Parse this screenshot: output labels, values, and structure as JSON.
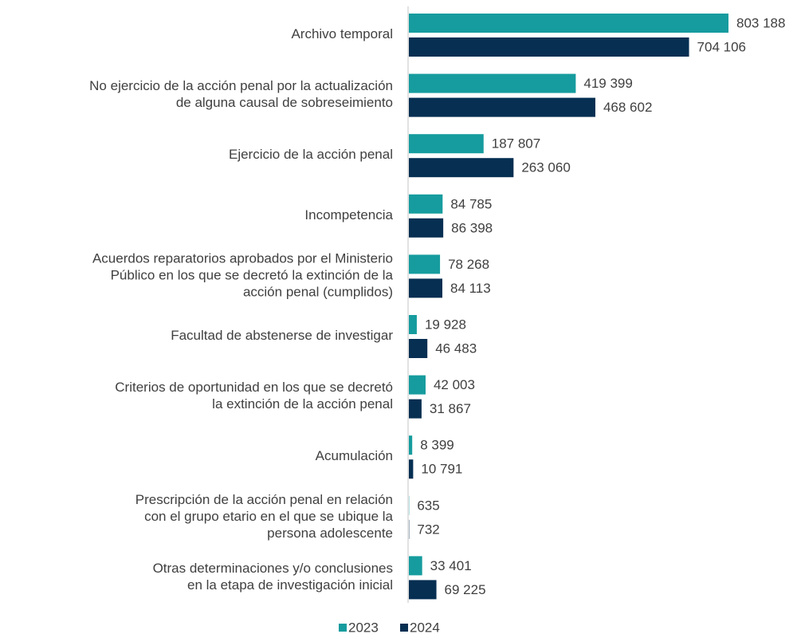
{
  "chart_data": {
    "type": "bar",
    "orientation": "horizontal",
    "categories": [
      "Archivo temporal",
      "No ejercicio de la acción penal por la actualización\nde alguna causal de sobreseimiento",
      "Ejercicio de la acción penal",
      "Incompetencia",
      "Acuerdos reparatorios aprobados por el Ministerio\nPúblico en los que se decretó la extinción de la\nacción penal (cumplidos)",
      "Facultad de abstenerse de investigar",
      "Criterios de oportunidad en los que se decretó\nla extinción de la acción penal",
      "Acumulación",
      "Prescripción de la acción penal en relación\ncon el grupo etario en el que se ubique la\npersona adolescente",
      "Otras determinaciones y/o conclusiones\nen la etapa de investigación inicial"
    ],
    "series": [
      {
        "name": "2023",
        "color": "#169c9e",
        "values": [
          803188,
          419399,
          187807,
          84785,
          78268,
          19928,
          42003,
          8399,
          635,
          33401
        ],
        "value_labels": [
          "803 188",
          "419 399",
          "187 807",
          "84 785",
          "78 268",
          "19 928",
          "42 003",
          "8 399",
          "635",
          "33 401"
        ]
      },
      {
        "name": "2024",
        "color": "#062f52",
        "values": [
          704106,
          468602,
          263060,
          86398,
          84113,
          46483,
          31867,
          10791,
          732,
          69225
        ],
        "value_labels": [
          "704 106",
          "468 602",
          "263 060",
          "86 398",
          "84 113",
          "46 483",
          "31 867",
          "10 791",
          "732",
          "69 225"
        ]
      }
    ],
    "legend": "bottom"
  }
}
